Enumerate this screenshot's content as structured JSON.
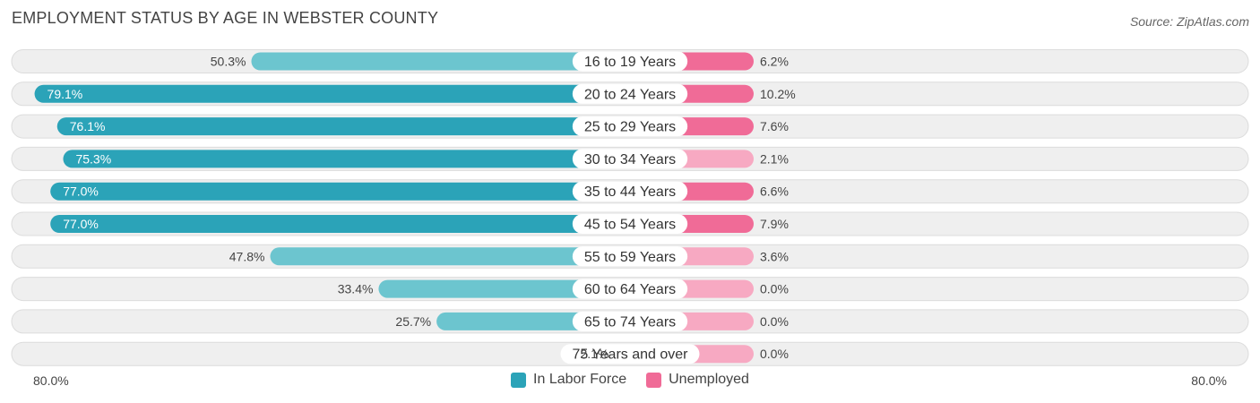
{
  "title": "EMPLOYMENT STATUS BY AGE IN WEBSTER COUNTY",
  "source": "Source: ZipAtlas.com",
  "colors": {
    "labor_force_dark": "#2ba3b8",
    "labor_force_light": "#6cc5cf",
    "unemployed_dark": "#f06b97",
    "unemployed_light": "#f7a9c2",
    "row_bg": "#efefef",
    "row_border": "#dcdcdc"
  },
  "chart_data": {
    "type": "bar",
    "orientation": "horizontal-diverging",
    "categories": [
      "16 to 19 Years",
      "20 to 24 Years",
      "25 to 29 Years",
      "30 to 34 Years",
      "35 to 44 Years",
      "45 to 54 Years",
      "55 to 59 Years",
      "60 to 64 Years",
      "65 to 74 Years",
      "75 Years and over"
    ],
    "series": [
      {
        "name": "In Labor Force",
        "values": [
          50.3,
          79.1,
          76.1,
          75.3,
          77.0,
          77.0,
          47.8,
          33.4,
          25.7,
          2.1
        ]
      },
      {
        "name": "Unemployed",
        "values": [
          6.2,
          10.2,
          7.6,
          2.1,
          6.6,
          7.9,
          3.6,
          0.0,
          0.0,
          0.0
        ]
      }
    ],
    "value_labels_left": [
      "50.3%",
      "79.1%",
      "76.1%",
      "75.3%",
      "77.0%",
      "77.0%",
      "47.8%",
      "33.4%",
      "25.7%",
      "2.1%"
    ],
    "value_labels_right": [
      "6.2%",
      "10.2%",
      "7.6%",
      "2.1%",
      "6.6%",
      "7.9%",
      "3.6%",
      "0.0%",
      "0.0%",
      "0.0%"
    ],
    "axis": {
      "left_label": "80.0%",
      "right_label": "80.0%",
      "max": 80.0
    },
    "legend": [
      "In Labor Force",
      "Unemployed"
    ],
    "legend_position": "bottom-center",
    "grid": false
  }
}
